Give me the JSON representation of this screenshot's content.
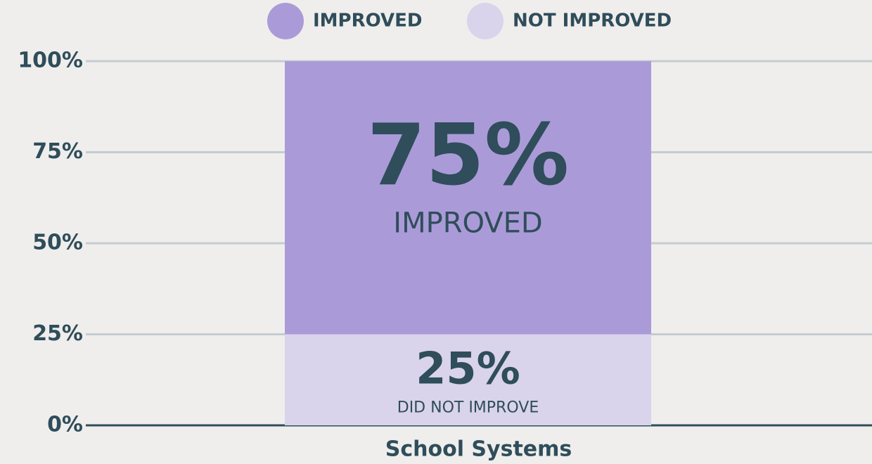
{
  "chart_data": {
    "type": "stacked_bar",
    "categories": [
      "School Systems"
    ],
    "series": [
      {
        "name": "NOT IMPROVED",
        "color": "#d9d3ec",
        "values": [
          25
        ],
        "value_labels": [
          "25%"
        ],
        "sublabel": "DID NOT IMPROVE"
      },
      {
        "name": "IMPROVED",
        "color": "#aa9bd8",
        "values": [
          75
        ],
        "value_labels": [
          "75%"
        ],
        "sublabel": "IMPROVED"
      }
    ],
    "ylim": [
      0,
      100
    ],
    "yticks": [
      {
        "value": 0,
        "label": "0%"
      },
      {
        "value": 25,
        "label": "25%"
      },
      {
        "value": 50,
        "label": "50%"
      },
      {
        "value": 75,
        "label": "75%"
      },
      {
        "value": 100,
        "label": "100%"
      }
    ],
    "grid": true,
    "legend": "top"
  }
}
